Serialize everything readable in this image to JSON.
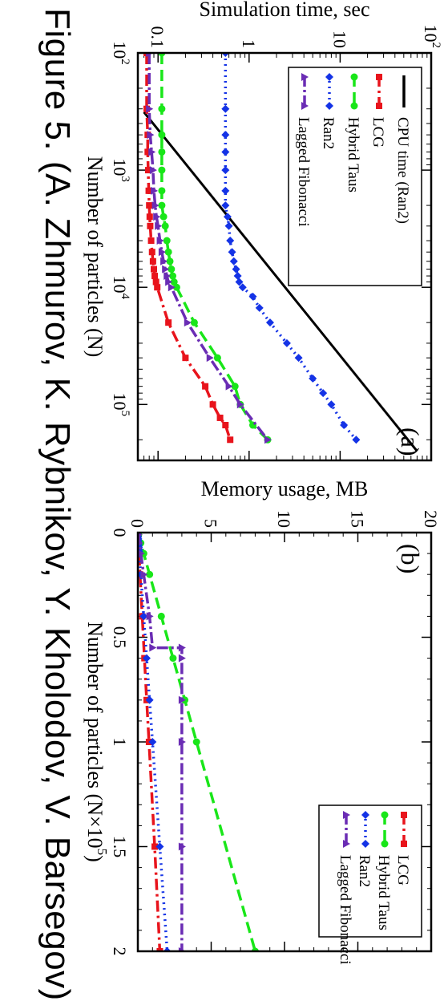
{
  "caption": "Figure 5. (A. Zhmurov, K. Rybnikov, Y. Kholodov, V. Barsegov)",
  "colors": {
    "cpu": "#000000",
    "lcg": "#e8141c",
    "taus": "#19e619",
    "ran2": "#1433e6",
    "lagged": "#6a2cb4"
  },
  "chart_data": [
    {
      "type": "line",
      "panel_label": "(a)",
      "xlabel": "Number of particles (N)",
      "ylabel": "Simulation time, sec",
      "xscale": "log",
      "yscale": "log",
      "xlim": [
        100,
        300000
      ],
      "ylim": [
        0.06,
        100
      ],
      "xticks": [
        {
          "v": 100,
          "b": "10",
          "e": "2"
        },
        {
          "v": 1000,
          "b": "10",
          "e": "3"
        },
        {
          "v": 10000,
          "b": "10",
          "e": "4"
        },
        {
          "v": 100000,
          "b": "10",
          "e": "5"
        }
      ],
      "yticks": [
        {
          "v": 0.1,
          "t": "0.1"
        },
        {
          "v": 1,
          "t": "1"
        },
        {
          "v": 10,
          "t": "10"
        },
        {
          "v": 100,
          "b": "10",
          "e": "2"
        }
      ],
      "legend_position": "top-left",
      "series": [
        {
          "name": "CPU time (Ran2)",
          "key": "cpu",
          "marker": "none",
          "dash": "",
          "x": [
            320,
            250000
          ],
          "y": [
            0.07,
            70
          ]
        },
        {
          "name": "LCG",
          "key": "lcg",
          "marker": "square",
          "dash": "14,5,3,5",
          "x": [
            100,
            300,
            500,
            700,
            1000,
            1500,
            2000,
            2500,
            3000,
            4000,
            5000,
            6000,
            7000,
            8000,
            9000,
            10000,
            20000,
            40000,
            70000,
            100000,
            130000,
            150000,
            200000
          ],
          "y": [
            0.075,
            0.075,
            0.077,
            0.077,
            0.078,
            0.079,
            0.08,
            0.081,
            0.082,
            0.084,
            0.086,
            0.088,
            0.09,
            0.092,
            0.095,
            0.098,
            0.13,
            0.2,
            0.33,
            0.4,
            0.48,
            0.55,
            0.62
          ]
        },
        {
          "name": "Hybrid Taus",
          "key": "taus",
          "marker": "circle",
          "dash": "14,7",
          "x": [
            100,
            300,
            500,
            700,
            1000,
            1500,
            2000,
            2500,
            3000,
            4000,
            5000,
            6000,
            7000,
            8000,
            9000,
            10000,
            20000,
            40000,
            70000,
            100000,
            150000,
            200000
          ],
          "y": [
            0.11,
            0.11,
            0.11,
            0.11,
            0.11,
            0.11,
            0.11,
            0.115,
            0.12,
            0.125,
            0.13,
            0.135,
            0.14,
            0.145,
            0.15,
            0.16,
            0.25,
            0.45,
            0.7,
            0.8,
            1.1,
            1.6
          ]
        },
        {
          "name": "Ran2",
          "key": "ran2",
          "marker": "diamond",
          "dash": "2,5",
          "x": [
            100,
            300,
            500,
            700,
            1000,
            1500,
            2000,
            2500,
            3000,
            4000,
            5000,
            6000,
            7000,
            8000,
            9000,
            10000,
            12000,
            15000,
            20000,
            30000,
            40000,
            60000,
            80000,
            100000,
            150000,
            200000
          ],
          "y": [
            0.55,
            0.55,
            0.55,
            0.55,
            0.55,
            0.55,
            0.55,
            0.58,
            0.6,
            0.62,
            0.65,
            0.68,
            0.72,
            0.75,
            0.78,
            0.85,
            1.1,
            1.3,
            1.7,
            2.6,
            3.5,
            5,
            6.5,
            8,
            11,
            15
          ]
        },
        {
          "name": "Lagged Fibonacci",
          "key": "lagged",
          "marker": "triangle",
          "dash": "14,4,3,4",
          "x": [
            100,
            300,
            500,
            700,
            1000,
            1500,
            2000,
            2500,
            3000,
            4000,
            5000,
            6000,
            7000,
            8000,
            9000,
            10000,
            20000,
            40000,
            70000,
            100000,
            200000
          ],
          "y": [
            0.08,
            0.08,
            0.082,
            0.085,
            0.088,
            0.09,
            0.093,
            0.096,
            0.1,
            0.105,
            0.11,
            0.115,
            0.12,
            0.125,
            0.13,
            0.14,
            0.21,
            0.37,
            0.6,
            0.8,
            1.6
          ]
        }
      ]
    },
    {
      "type": "line",
      "panel_label": "(b)",
      "xlabel": "Number of particles (N×10",
      "xlabel_sup": "5",
      "xlabel_end": ")",
      "ylabel": "Memory usage, MB",
      "xlim": [
        0,
        2
      ],
      "ylim": [
        0,
        20
      ],
      "xticks": [
        {
          "v": 0,
          "t": "0"
        },
        {
          "v": 0.5,
          "t": "0.5"
        },
        {
          "v": 1,
          "t": "1"
        },
        {
          "v": 1.5,
          "t": "1.5"
        },
        {
          "v": 2,
          "t": "2"
        }
      ],
      "yticks": [
        {
          "v": 0,
          "t": "0"
        },
        {
          "v": 5,
          "t": "5"
        },
        {
          "v": 10,
          "t": "10"
        },
        {
          "v": 15,
          "t": "15"
        },
        {
          "v": 20,
          "t": "20"
        }
      ],
      "legend_position": "top-right",
      "series": [
        {
          "name": "LCG",
          "key": "lcg",
          "marker": "square",
          "dash": "14,5,3,5",
          "x": [
            0.001,
            0.01,
            0.05,
            0.1,
            0.2,
            0.4,
            0.6,
            0.8,
            1.0,
            1.5,
            2.0
          ],
          "y": [
            0.01,
            0.02,
            0.04,
            0.08,
            0.15,
            0.3,
            0.45,
            0.6,
            0.76,
            1.15,
            1.5
          ]
        },
        {
          "name": "Hybrid Taus",
          "key": "taus",
          "marker": "circle",
          "dash": "14,7",
          "x": [
            0.001,
            0.01,
            0.05,
            0.1,
            0.2,
            0.4,
            0.6,
            0.8,
            1.0,
            2.0
          ],
          "y": [
            0.0,
            0.05,
            0.2,
            0.4,
            0.8,
            1.6,
            2.4,
            3.2,
            4.0,
            8.0
          ]
        },
        {
          "name": "Ran2",
          "key": "ran2",
          "marker": "diamond",
          "dash": "2,5",
          "x": [
            0.001,
            0.01,
            0.02,
            0.03,
            0.04,
            0.05,
            0.06,
            0.07,
            0.08,
            0.09,
            0.1,
            0.2,
            0.4,
            0.6,
            0.8,
            1.0,
            1.5,
            2.0
          ],
          "y": [
            0.0,
            0.01,
            0.02,
            0.03,
            0.04,
            0.05,
            0.06,
            0.07,
            0.08,
            0.09,
            0.1,
            0.2,
            0.4,
            0.6,
            0.8,
            1.0,
            1.5,
            2.0
          ]
        },
        {
          "name": "Lagged Fibonacci",
          "key": "lagged",
          "marker": "triangle",
          "dash": "14,4,3,4",
          "x": [
            0.001,
            0.01,
            0.05,
            0.1,
            0.2,
            0.4,
            0.55,
            0.55,
            0.6,
            0.8,
            1.0,
            1.5,
            2.0
          ],
          "y": [
            0.0,
            0.05,
            0.1,
            0.2,
            0.4,
            0.8,
            1.0,
            3.0,
            3.0,
            3.0,
            3.0,
            3.0,
            3.0
          ]
        }
      ]
    }
  ]
}
